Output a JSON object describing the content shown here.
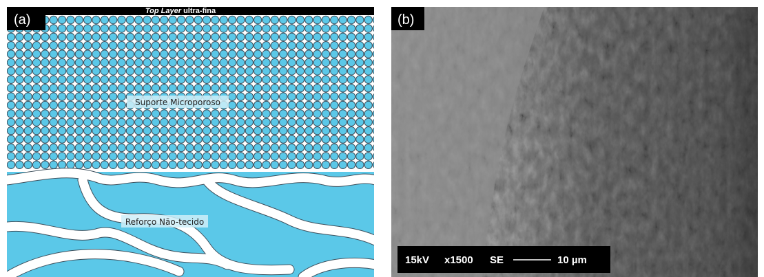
{
  "panel_a": {
    "label": "(a)",
    "top_layer": {
      "italic": "Top Layer",
      "text": "ultra-fina"
    },
    "support_label": "Suporte Microporoso",
    "reinforcement_label": "Reforço Não-tecido"
  },
  "panel_b": {
    "label": "(b)",
    "scale_bar": {
      "voltage": "15kV",
      "magnification": "x1500",
      "detector": "SE",
      "length": "10 µm"
    }
  }
}
